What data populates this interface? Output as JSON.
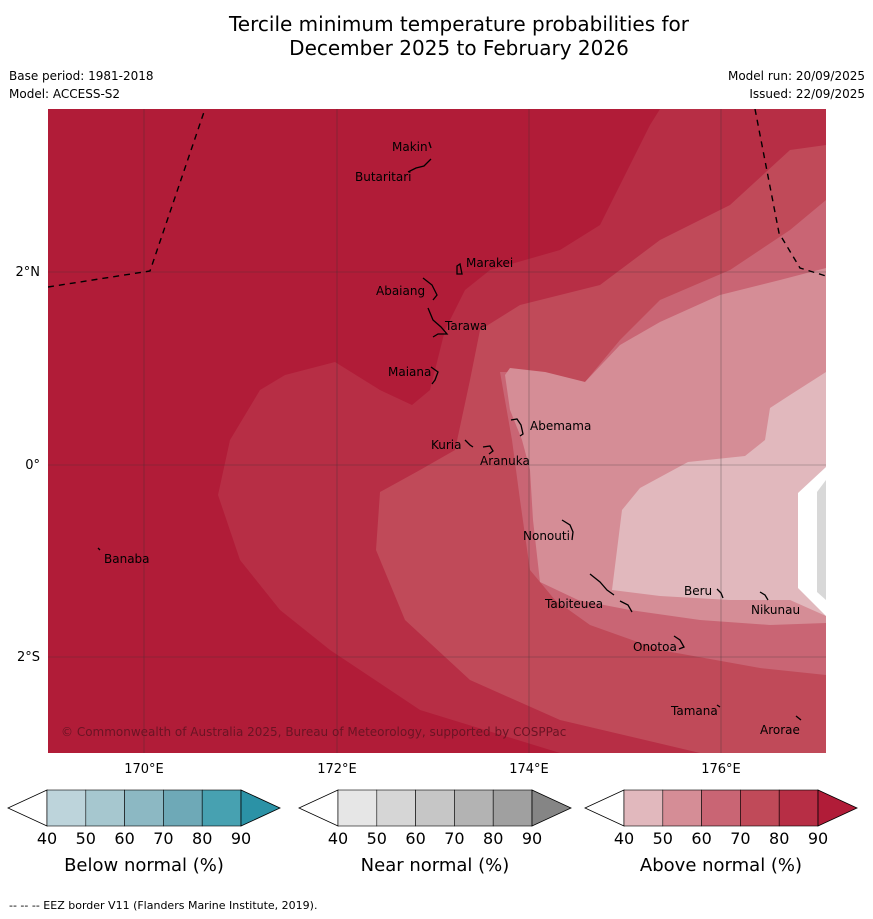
{
  "title": {
    "line1": "Tercile minimum temperature probabilities for",
    "line2": "December 2025 to February 2026"
  },
  "meta": {
    "base_period": "Base period: 1981-2018",
    "model": "Model: ACCESS-S2",
    "model_run": "Model run: 20/09/2025",
    "issued": "Issued: 22/09/2025"
  },
  "map": {
    "longitude_labels": [
      "170°E",
      "172°E",
      "174°E",
      "176°E"
    ],
    "latitude_labels": [
      "2°N",
      "0°",
      "2°S"
    ],
    "places": [
      "Makin",
      "Butaritari",
      "Marakei",
      "Abaiang",
      "Tarawa",
      "Maiana",
      "Abemama",
      "Kuria",
      "Aranuka",
      "Banaba",
      "Nonouti",
      "Tabiteuea",
      "Beru",
      "Nikunau",
      "Onotoa",
      "Tamana",
      "Arorae"
    ],
    "copyright": "© Commonwealth of Australia 2025, Bureau of Meteorology, supported by COSPPac",
    "probability_bands_above_normal_percent": [
      90,
      80,
      70,
      60,
      50,
      40
    ],
    "colors": {
      "band_90": "#b11c38",
      "band_80": "#b72e45",
      "band_70": "#c04a59",
      "band_60": "#c96574",
      "band_50": "#d58d96",
      "band_40": "#e1b8bd",
      "near_normal_40": "#d8d8d8"
    }
  },
  "colorbars": [
    {
      "label": "Below normal (%)",
      "ticks": [
        "40",
        "50",
        "60",
        "70",
        "80",
        "90"
      ],
      "colors": [
        "#bdd4db",
        "#a6c7cf",
        "#8cb8c3",
        "#6ea9b7",
        "#47a1b1",
        "#2b92a6"
      ]
    },
    {
      "label": "Near normal (%)",
      "ticks": [
        "40",
        "50",
        "60",
        "70",
        "80",
        "90"
      ],
      "colors": [
        "#e6e6e6",
        "#d6d6d6",
        "#c6c6c6",
        "#b3b3b3",
        "#a0a0a0",
        "#858585"
      ]
    },
    {
      "label": "Above normal (%)",
      "ticks": [
        "40",
        "50",
        "60",
        "70",
        "80",
        "90"
      ],
      "colors": [
        "#e1b8bd",
        "#d58d96",
        "#c96574",
        "#c04a59",
        "#b72e45",
        "#b11c38"
      ]
    }
  ],
  "footer": "--  --  -- EEZ border V11 (Flanders Marine Institute, 2019)."
}
